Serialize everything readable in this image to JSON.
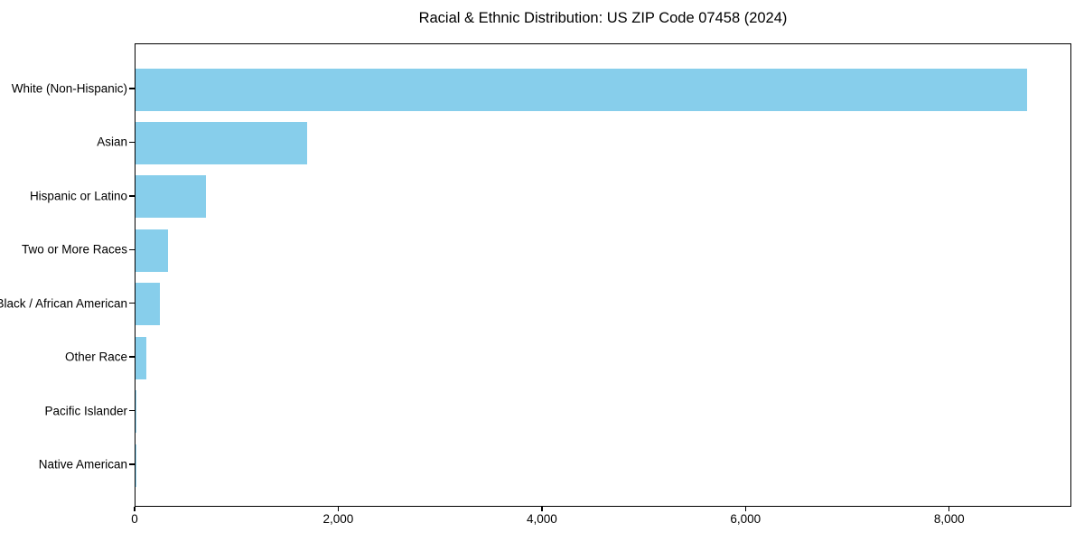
{
  "colors": {
    "bar": "#87CEEB",
    "spine": "#000000",
    "text": "#000000",
    "background": "#ffffff"
  },
  "chart_data": {
    "type": "bar",
    "orientation": "horizontal",
    "title": "Racial & Ethnic Distribution: US ZIP Code 07458 (2024)",
    "xlabel": "",
    "ylabel": "",
    "categories": [
      "White (Non-Hispanic)",
      "Asian",
      "Hispanic or Latino",
      "Two or More Races",
      "Black / African American",
      "Other Race",
      "Pacific Islander",
      "Native American"
    ],
    "values": [
      8760,
      1690,
      695,
      320,
      238,
      104,
      6,
      2
    ],
    "xlim": [
      0,
      9200
    ],
    "x_ticks": [
      0,
      2000,
      4000,
      6000,
      8000
    ],
    "x_tick_labels": [
      "0",
      "2,000",
      "4,000",
      "6,000",
      "8,000"
    ],
    "grid": false,
    "legend": false
  }
}
